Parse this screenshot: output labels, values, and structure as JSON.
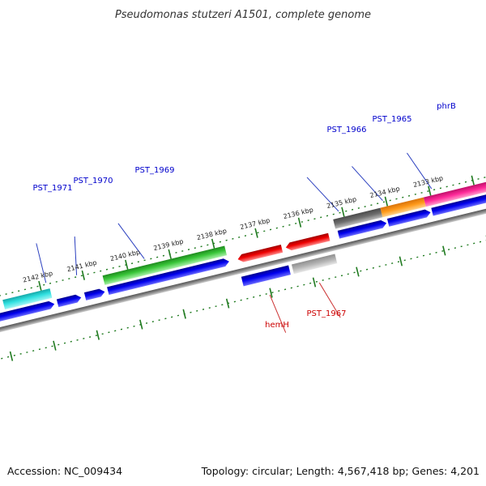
{
  "title": "Pseudomonas stutzeri A1501, complete genome",
  "footer": {
    "accession": "Accession: NC_009434",
    "summary": "Topology: circular; Length: 4,567,418 bp; Genes: 4,201"
  },
  "colors": {
    "backbone": "#7f7f7f",
    "tick": "#1f7a1f",
    "cds": "#0000ee",
    "label_forward": "#0000cc",
    "label_reverse": "#cc0000",
    "leader": "#2a3fbf",
    "leader_reverse": "#cc3333"
  },
  "ticks": [
    {
      "label": "2142 kbp"
    },
    {
      "label": "2141 kbp"
    },
    {
      "label": "2140 kbp"
    },
    {
      "label": "2139 kbp"
    },
    {
      "label": "2138 kbp"
    },
    {
      "label": "2137 kbp"
    },
    {
      "label": "2136 kbp"
    },
    {
      "label": "2135 kbp"
    },
    {
      "label": "2134 kbp"
    },
    {
      "label": "2133 kbp"
    }
  ],
  "genes": [
    {
      "label": "PST_1971",
      "strand": "forward"
    },
    {
      "label": "PST_1970",
      "strand": "forward"
    },
    {
      "label": "PST_1969",
      "strand": "forward"
    },
    {
      "label": "hemH",
      "strand": "reverse"
    },
    {
      "label": "PST_1967",
      "strand": "reverse"
    },
    {
      "label": "PST_1966",
      "strand": "forward"
    },
    {
      "label": "PST_1965",
      "strand": "forward"
    },
    {
      "label": "phrB",
      "strand": "forward"
    }
  ]
}
